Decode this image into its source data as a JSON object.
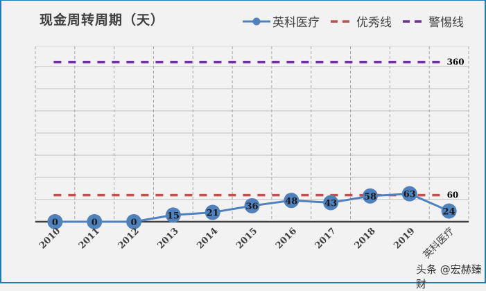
{
  "header": {
    "title": "现金周转周期（天）"
  },
  "legend": [
    {
      "label": "英科医疗",
      "color": "#4f81bd",
      "style": "line-marker"
    },
    {
      "label": "优秀线",
      "color": "#c0504d",
      "style": "dashed"
    },
    {
      "label": "警惕线",
      "color": "#7030a0",
      "style": "dashed"
    }
  ],
  "watermark": "头条 @宏赫臻财",
  "chart_data": {
    "type": "line",
    "title": "现金周转周期（天）",
    "xlabel": "",
    "ylabel": "",
    "categories": [
      "2010",
      "2011",
      "2012",
      "2013",
      "2014",
      "2015",
      "2016",
      "2017",
      "2018",
      "2019",
      "英科医疗"
    ],
    "series": [
      {
        "name": "英科医疗",
        "values": [
          0,
          0,
          0,
          15,
          21,
          36,
          48,
          43,
          58,
          63,
          24
        ],
        "color": "#4f81bd"
      },
      {
        "name": "优秀线",
        "values": [
          60,
          60,
          60,
          60,
          60,
          60,
          60,
          60,
          60,
          60,
          60
        ],
        "color": "#c0504d",
        "end_label": "60"
      },
      {
        "name": "警惕线",
        "values": [
          360,
          360,
          360,
          360,
          360,
          360,
          360,
          360,
          360,
          360,
          360
        ],
        "color": "#7030a0",
        "end_label": "360"
      }
    ],
    "ylim": [
      0,
      400
    ],
    "grid": true,
    "legend_position": "top-right",
    "axis_tick_labels_y_hidden": true
  }
}
